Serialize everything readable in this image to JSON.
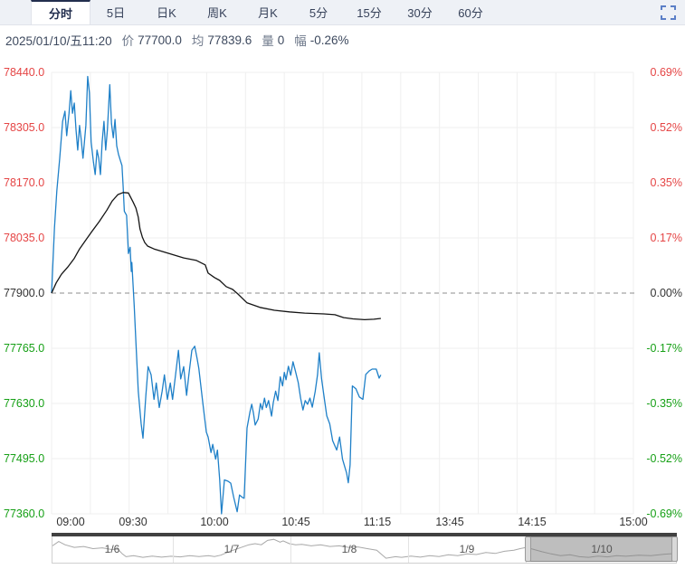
{
  "tabs": {
    "items": [
      {
        "label": "分时",
        "selected": true
      },
      {
        "label": "5日"
      },
      {
        "label": "日K"
      },
      {
        "label": "周K"
      },
      {
        "label": "月K"
      },
      {
        "label": "5分"
      },
      {
        "label": "15分"
      },
      {
        "label": "30分"
      },
      {
        "label": "60分"
      }
    ]
  },
  "toolbar": {
    "fullscreen_icon": "expand-corners",
    "accent_color": "#5b7fc7"
  },
  "info": {
    "datetime": "2025/01/10/五11:20",
    "price_label": "价",
    "price": "77700.0",
    "avg_label": "均",
    "avg": "77839.6",
    "vol_label": "量",
    "vol": "0",
    "chg_label": "幅",
    "chg": "-0.26%"
  },
  "chart_data": {
    "type": "line",
    "title": "分时 (intraday price vs average)",
    "ylim": [
      77360,
      78440
    ],
    "baseline": 77900,
    "grid": {
      "h_levels": [
        78440,
        78305,
        78170,
        78035,
        77900,
        77765,
        77630,
        77495,
        77360
      ],
      "v_count": 16,
      "grid_on": true
    },
    "y_left": {
      "labels": [
        "78440.0",
        "78305.0",
        "78170.0",
        "78035.0",
        "77900.0",
        "77765.0",
        "77630.0",
        "77495.0",
        "77360.0"
      ],
      "tones": [
        "up",
        "up",
        "up",
        "up",
        "flat",
        "down",
        "down",
        "down",
        "down"
      ]
    },
    "y_right": {
      "labels": [
        "0.69%",
        "0.52%",
        "0.35%",
        "0.17%",
        "0.00%",
        "-0.17%",
        "-0.35%",
        "-0.52%",
        "-0.69%"
      ],
      "tones": [
        "up",
        "up",
        "up",
        "up",
        "flat",
        "down",
        "down",
        "down",
        "down"
      ]
    },
    "x_ticks": {
      "labels": [
        "09:00",
        "09:30",
        "10:00",
        "10:45",
        "11:15",
        "13:45",
        "14:15",
        "15:00"
      ],
      "fractions": [
        0.033,
        0.14,
        0.28,
        0.42,
        0.56,
        0.685,
        0.825,
        1.0
      ]
    },
    "colors": {
      "price": "#1f80c8",
      "average": "#141414",
      "grid": "#efefef",
      "baseline_dash": "#8c8c8c"
    },
    "series": [
      {
        "name": "price",
        "color": "#1f80c8",
        "points": [
          [
            0.0,
            77900
          ],
          [
            0.005,
            78060
          ],
          [
            0.009,
            78150
          ],
          [
            0.014,
            78230
          ],
          [
            0.019,
            78320
          ],
          [
            0.023,
            78345
          ],
          [
            0.026,
            78285
          ],
          [
            0.03,
            78340
          ],
          [
            0.033,
            78395
          ],
          [
            0.036,
            78340
          ],
          [
            0.039,
            78365
          ],
          [
            0.042,
            78300
          ],
          [
            0.045,
            78250
          ],
          [
            0.048,
            78310
          ],
          [
            0.051,
            78275
          ],
          [
            0.054,
            78230
          ],
          [
            0.059,
            78310
          ],
          [
            0.062,
            78430
          ],
          [
            0.065,
            78390
          ],
          [
            0.068,
            78270
          ],
          [
            0.072,
            78220
          ],
          [
            0.075,
            78190
          ],
          [
            0.078,
            78250
          ],
          [
            0.081,
            78230
          ],
          [
            0.084,
            78190
          ],
          [
            0.087,
            78270
          ],
          [
            0.09,
            78320
          ],
          [
            0.093,
            78250
          ],
          [
            0.096,
            78300
          ],
          [
            0.1,
            78410
          ],
          [
            0.103,
            78315
          ],
          [
            0.106,
            78280
          ],
          [
            0.109,
            78325
          ],
          [
            0.112,
            78260
          ],
          [
            0.115,
            78240
          ],
          [
            0.118,
            78225
          ],
          [
            0.121,
            78212
          ],
          [
            0.123,
            78160
          ],
          [
            0.125,
            78100
          ],
          [
            0.129,
            78090
          ],
          [
            0.132,
            77997
          ],
          [
            0.135,
            78012
          ],
          [
            0.137,
            77953
          ],
          [
            0.138,
            77975
          ],
          [
            0.142,
            77870
          ],
          [
            0.145,
            77780
          ],
          [
            0.149,
            77660
          ],
          [
            0.154,
            77580
          ],
          [
            0.157,
            77545
          ],
          [
            0.162,
            77650
          ],
          [
            0.166,
            77720
          ],
          [
            0.171,
            77700
          ],
          [
            0.176,
            77640
          ],
          [
            0.18,
            77680
          ],
          [
            0.185,
            77620
          ],
          [
            0.19,
            77660
          ],
          [
            0.194,
            77700
          ],
          [
            0.199,
            77640
          ],
          [
            0.204,
            77680
          ],
          [
            0.208,
            77640
          ],
          [
            0.213,
            77700
          ],
          [
            0.218,
            77760
          ],
          [
            0.222,
            77690
          ],
          [
            0.227,
            77720
          ],
          [
            0.232,
            77650
          ],
          [
            0.236,
            77700
          ],
          [
            0.241,
            77760
          ],
          [
            0.246,
            77770
          ],
          [
            0.25,
            77740
          ],
          [
            0.253,
            77716
          ],
          [
            0.26,
            77630
          ],
          [
            0.266,
            77560
          ],
          [
            0.269,
            77548
          ],
          [
            0.274,
            77510
          ],
          [
            0.277,
            77530
          ],
          [
            0.282,
            77494
          ],
          [
            0.285,
            77516
          ],
          [
            0.289,
            77443
          ],
          [
            0.292,
            77360
          ],
          [
            0.297,
            77443
          ],
          [
            0.303,
            77440
          ],
          [
            0.308,
            77435
          ],
          [
            0.313,
            77400
          ],
          [
            0.319,
            77365
          ],
          [
            0.323,
            77406
          ],
          [
            0.328,
            77400
          ],
          [
            0.331,
            77398
          ],
          [
            0.336,
            77570
          ],
          [
            0.341,
            77610
          ],
          [
            0.344,
            77628
          ],
          [
            0.347,
            77606
          ],
          [
            0.35,
            77577
          ],
          [
            0.355,
            77592
          ],
          [
            0.359,
            77630
          ],
          [
            0.362,
            77615
          ],
          [
            0.366,
            77643
          ],
          [
            0.369,
            77620
          ],
          [
            0.373,
            77637
          ],
          [
            0.378,
            77599
          ],
          [
            0.381,
            77632
          ],
          [
            0.385,
            77660
          ],
          [
            0.389,
            77637
          ],
          [
            0.393,
            77695
          ],
          [
            0.397,
            77673
          ],
          [
            0.4,
            77706
          ],
          [
            0.403,
            77688
          ],
          [
            0.407,
            77721
          ],
          [
            0.411,
            77699
          ],
          [
            0.415,
            77732
          ],
          [
            0.419,
            77710
          ],
          [
            0.424,
            77681
          ],
          [
            0.428,
            77643
          ],
          [
            0.432,
            77614
          ],
          [
            0.436,
            77637
          ],
          [
            0.44,
            77628
          ],
          [
            0.444,
            77643
          ],
          [
            0.448,
            77621
          ],
          [
            0.453,
            77659
          ],
          [
            0.457,
            77700
          ],
          [
            0.46,
            77754
          ],
          [
            0.464,
            77690
          ],
          [
            0.468,
            77650
          ],
          [
            0.473,
            77600
          ],
          [
            0.478,
            77580
          ],
          [
            0.483,
            77539
          ],
          [
            0.49,
            77516
          ],
          [
            0.495,
            77548
          ],
          [
            0.5,
            77494
          ],
          [
            0.507,
            77460
          ],
          [
            0.51,
            77436
          ],
          [
            0.513,
            77480
          ],
          [
            0.517,
            77673
          ],
          [
            0.523,
            77666
          ],
          [
            0.529,
            77646
          ],
          [
            0.535,
            77640
          ],
          [
            0.54,
            77701
          ],
          [
            0.546,
            77710
          ],
          [
            0.551,
            77714
          ],
          [
            0.558,
            77714
          ],
          [
            0.563,
            77692
          ],
          [
            0.566,
            77700
          ]
        ]
      },
      {
        "name": "average",
        "color": "#141414",
        "points": [
          [
            0.0,
            77900
          ],
          [
            0.008,
            77925
          ],
          [
            0.017,
            77946
          ],
          [
            0.028,
            77964
          ],
          [
            0.039,
            77985
          ],
          [
            0.048,
            78008
          ],
          [
            0.059,
            78030
          ],
          [
            0.07,
            78052
          ],
          [
            0.082,
            78075
          ],
          [
            0.095,
            78103
          ],
          [
            0.104,
            78125
          ],
          [
            0.114,
            78141
          ],
          [
            0.123,
            78146
          ],
          [
            0.132,
            78145
          ],
          [
            0.14,
            78123
          ],
          [
            0.145,
            78108
          ],
          [
            0.149,
            78086
          ],
          [
            0.152,
            78057
          ],
          [
            0.156,
            78037
          ],
          [
            0.16,
            78024
          ],
          [
            0.165,
            78015
          ],
          [
            0.176,
            78008
          ],
          [
            0.202,
            77997
          ],
          [
            0.227,
            77986
          ],
          [
            0.249,
            77980
          ],
          [
            0.264,
            77969
          ],
          [
            0.269,
            77949
          ],
          [
            0.28,
            77938
          ],
          [
            0.289,
            77931
          ],
          [
            0.3,
            77916
          ],
          [
            0.311,
            77909
          ],
          [
            0.32,
            77898
          ],
          [
            0.336,
            77876
          ],
          [
            0.358,
            77865
          ],
          [
            0.383,
            77858
          ],
          [
            0.409,
            77854
          ],
          [
            0.435,
            77851
          ],
          [
            0.468,
            77849
          ],
          [
            0.487,
            77847
          ],
          [
            0.502,
            77840
          ],
          [
            0.518,
            77837
          ],
          [
            0.538,
            77835
          ],
          [
            0.554,
            77836
          ],
          [
            0.566,
            77838
          ]
        ]
      }
    ]
  },
  "navigator": {
    "sections": [
      {
        "label": "1/6"
      },
      {
        "label": "1/7"
      },
      {
        "label": "1/8"
      },
      {
        "label": "1/9"
      },
      {
        "label": "1/10"
      }
    ],
    "selected": "1/10",
    "selected_index": 4,
    "line_color": "#a8a8a8",
    "line": [
      [
        0.0,
        0.35
      ],
      [
        0.01,
        0.15
      ],
      [
        0.02,
        0.3
      ],
      [
        0.035,
        0.42
      ],
      [
        0.05,
        0.38
      ],
      [
        0.065,
        0.48
      ],
      [
        0.08,
        0.44
      ],
      [
        0.095,
        0.52
      ],
      [
        0.105,
        0.5
      ],
      [
        0.112,
        0.72
      ],
      [
        0.118,
        0.85
      ],
      [
        0.13,
        0.8
      ],
      [
        0.145,
        0.88
      ],
      [
        0.16,
        0.82
      ],
      [
        0.175,
        0.87
      ],
      [
        0.19,
        0.83
      ],
      [
        0.205,
        0.86
      ],
      [
        0.22,
        0.8
      ],
      [
        0.235,
        0.84
      ],
      [
        0.25,
        0.8
      ],
      [
        0.26,
        0.84
      ],
      [
        0.27,
        0.78
      ],
      [
        0.285,
        0.6
      ],
      [
        0.3,
        0.45
      ],
      [
        0.315,
        0.3
      ],
      [
        0.325,
        0.25
      ],
      [
        0.335,
        0.3
      ],
      [
        0.345,
        0.1
      ],
      [
        0.355,
        0.05
      ],
      [
        0.365,
        0.18
      ],
      [
        0.37,
        0.12
      ],
      [
        0.38,
        0.25
      ],
      [
        0.39,
        0.3
      ],
      [
        0.4,
        0.28
      ],
      [
        0.415,
        0.35
      ],
      [
        0.43,
        0.3
      ],
      [
        0.445,
        0.38
      ],
      [
        0.46,
        0.35
      ],
      [
        0.475,
        0.42
      ],
      [
        0.49,
        0.4
      ],
      [
        0.505,
        0.48
      ],
      [
        0.52,
        0.55
      ],
      [
        0.535,
        0.92
      ],
      [
        0.55,
        0.85
      ],
      [
        0.56,
        0.88
      ],
      [
        0.575,
        0.82
      ],
      [
        0.59,
        0.87
      ],
      [
        0.605,
        0.8
      ],
      [
        0.62,
        0.84
      ],
      [
        0.635,
        0.76
      ],
      [
        0.65,
        0.8
      ],
      [
        0.665,
        0.72
      ],
      [
        0.68,
        0.75
      ],
      [
        0.695,
        0.66
      ],
      [
        0.71,
        0.7
      ],
      [
        0.725,
        0.6
      ],
      [
        0.74,
        0.55
      ],
      [
        0.75,
        0.48
      ],
      [
        0.76,
        0.42
      ],
      [
        0.77,
        0.5
      ],
      [
        0.785,
        0.62
      ],
      [
        0.8,
        0.72
      ],
      [
        0.815,
        0.8
      ],
      [
        0.83,
        0.76
      ],
      [
        0.845,
        0.85
      ],
      [
        0.86,
        0.88
      ],
      [
        0.875,
        0.82
      ],
      [
        0.89,
        0.86
      ],
      [
        0.905,
        0.8
      ],
      [
        0.92,
        0.83
      ],
      [
        0.94,
        0.78
      ],
      [
        0.96,
        0.8
      ],
      [
        0.98,
        0.74
      ],
      [
        1.0,
        0.7
      ]
    ]
  }
}
